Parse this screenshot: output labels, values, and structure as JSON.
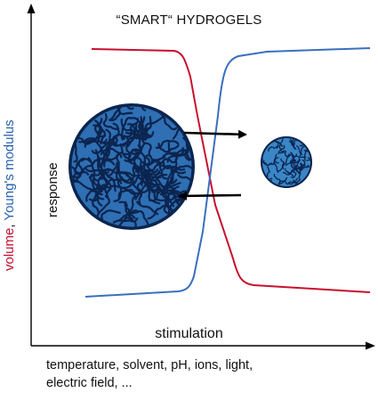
{
  "title": "“SMART“ HYDROGELS",
  "xlabel": "stimulation",
  "ylabel": {
    "volume": "volume",
    "separator": ", ",
    "modulus": "Young's modulus",
    "volume_color": "#c8102e",
    "modulus_color": "#2a62b0"
  },
  "response_label": "response",
  "stimuli_line1": "temperature, solvent, pH, ions, light,",
  "stimuli_line2": "electric field, ...",
  "colors": {
    "volume_curve": "#c8102e",
    "modulus_curve": "#3a6fc0",
    "gel_fill": "#2f6fb3",
    "gel_dark": "#0b2550"
  }
}
